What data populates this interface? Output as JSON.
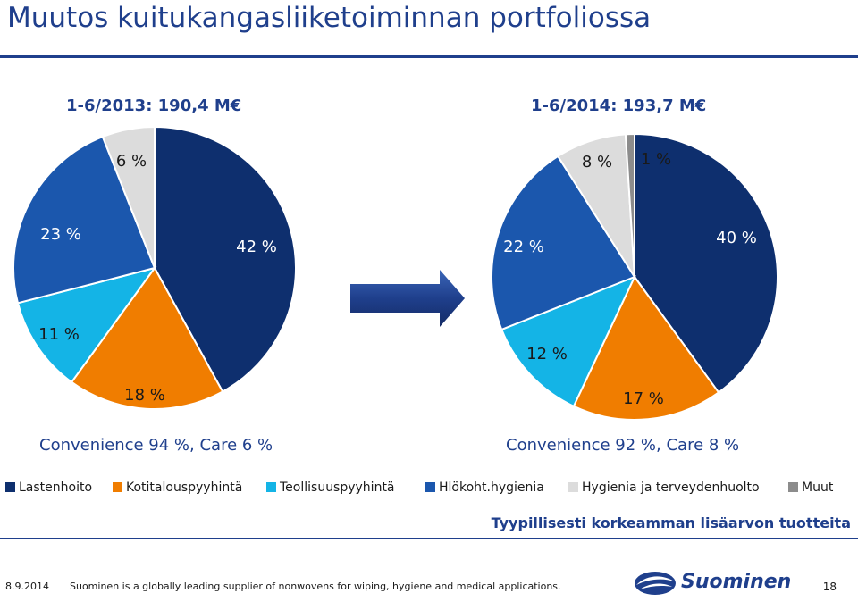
{
  "slide": {
    "title": "Muutos kuitukangasliiketoiminnan portfoliossa",
    "value_note": "Tyypillisesti korkeamman lisäarvon tuotteita"
  },
  "colors": {
    "Lastenhoito": "#0e2f6e",
    "Kotitalouspyyhintä": "#f07d00",
    "Teollisuuspyyhintä": "#14b4e6",
    "Hlökoht.hygienia": "#1b57ad",
    "Hygienia ja terveydenhuolto": "#dcdcdc",
    "Muut": "#8c8c8c"
  },
  "chart_data": [
    {
      "type": "pie",
      "title": "1-6/2013:  190,4 M€",
      "subtitle": "Convenience 94 %, Care 6 %",
      "categories": [
        "Lastenhoito",
        "Kotitalouspyyhintä",
        "Teollisuuspyyhintä",
        "Hlökoht.hygienia",
        "Hygienia ja terveydenhuolto"
      ],
      "values": [
        42,
        18,
        11,
        23,
        6
      ],
      "labels": [
        "42 %",
        "18 %",
        "11 %",
        "23 %",
        "6 %"
      ]
    },
    {
      "type": "pie",
      "title": "1-6/2014: 193,7 M€",
      "subtitle": "Convenience 92 %, Care 8 %",
      "categories": [
        "Lastenhoito",
        "Kotitalouspyyhintä",
        "Teollisuuspyyhintä",
        "Hlökoht.hygienia",
        "Hygienia ja terveydenhuolto",
        "Muut"
      ],
      "values": [
        40,
        17,
        12,
        22,
        8,
        1
      ],
      "labels": [
        "40 %",
        "17 %",
        "12 %",
        "22 %",
        "8 %",
        "1 %"
      ]
    }
  ],
  "legend": {
    "items": [
      "Lastenhoito",
      "Kotitalouspyyhintä",
      "Teollisuuspyyhintä",
      "Hlökoht.hygienia",
      "Hygienia ja terveydenhuolto",
      "Muut"
    ]
  },
  "footer": {
    "date": "8.9.2014",
    "text": "Suominen is a globally leading supplier of nonwovens for wiping, hygiene and medical applications.",
    "brand": "Suominen",
    "page": "18"
  }
}
